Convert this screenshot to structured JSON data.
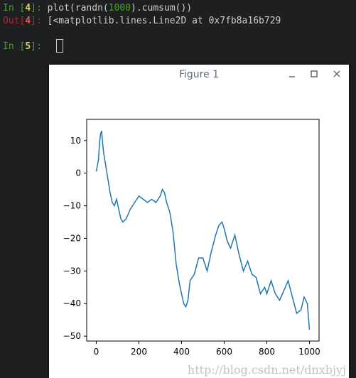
{
  "console": {
    "line1": {
      "in_label": "In [",
      "num": "4",
      "suffix": "]: ",
      "code_before": "plot(randn(",
      "code_num": "1000",
      "code_after": ").cumsum())"
    },
    "line2": {
      "out_label": "Out[",
      "num": "4",
      "suffix": "]: ",
      "text": "[<matplotlib.lines.Line2D at 0x7fb8a16b729"
    },
    "line3": {
      "in_label": "In [",
      "num": "5",
      "suffix": "]: "
    }
  },
  "figure": {
    "title": "Figure 1",
    "controls": {
      "minimize": "minimize",
      "maximize": "maximize",
      "close": "close"
    }
  },
  "chart_data": {
    "type": "line",
    "title": "",
    "xlabel": "",
    "ylabel": "",
    "xlim": [
      -45,
      1045
    ],
    "ylim": [
      -51.5,
      16.5
    ],
    "xticks": [
      0,
      200,
      400,
      600,
      800,
      1000
    ],
    "yticks": [
      10,
      0,
      -10,
      -20,
      -30,
      -40,
      -50
    ],
    "grid": false,
    "color": "#1f77b4",
    "series": [
      {
        "x": [
          0,
          10,
          15,
          20,
          25,
          30,
          35,
          45,
          55,
          65,
          75,
          85,
          95,
          105,
          115,
          125,
          140,
          160,
          180,
          200,
          220,
          240,
          260,
          280,
          300,
          310,
          320,
          330,
          345,
          360,
          375,
          390,
          410,
          420,
          430,
          440,
          460,
          480,
          500,
          520,
          540,
          560,
          575,
          590,
          600,
          615,
          630,
          650,
          670,
          690,
          710,
          730,
          750,
          770,
          790,
          800,
          820,
          840,
          860,
          880,
          900,
          920,
          940,
          960,
          975,
          990,
          1000
        ],
        "y": [
          0.5,
          4,
          9,
          12,
          13,
          9,
          6,
          2,
          -2,
          -6,
          -9,
          -10,
          -8,
          -11,
          -14,
          -15,
          -14,
          -11,
          -9,
          -7,
          -8,
          -9,
          -8,
          -9,
          -7,
          -5,
          -6,
          -9,
          -12,
          -18,
          -28,
          -34,
          -40,
          -41,
          -39,
          -33,
          -31,
          -26,
          -26,
          -30,
          -24,
          -19,
          -16,
          -15,
          -17,
          -21,
          -23,
          -19,
          -25,
          -30,
          -27,
          -31,
          -32,
          -37,
          -35,
          -37,
          -33,
          -37,
          -39,
          -36,
          -33,
          -38,
          -43,
          -42,
          -38,
          -40,
          -48
        ]
      }
    ]
  },
  "watermark": "http://blog.csdn.net/dnxbjyj"
}
